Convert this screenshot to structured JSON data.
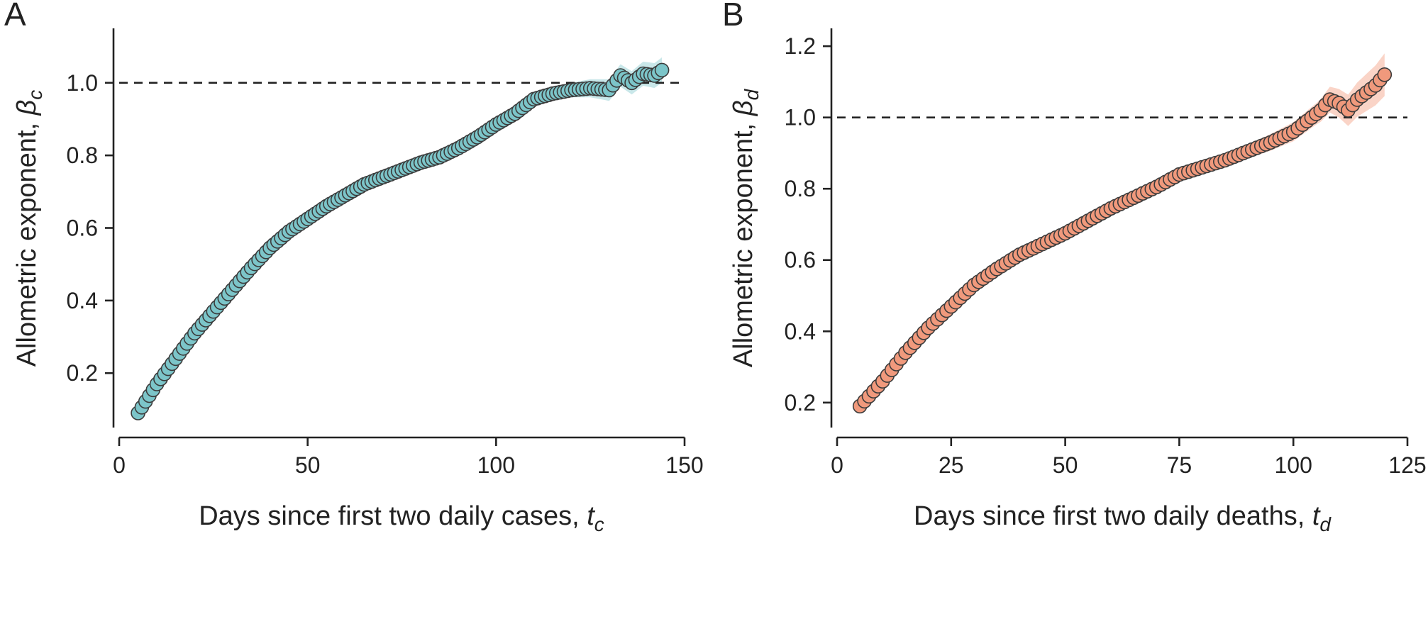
{
  "colors": {
    "series_a_fill": "#7cc5c9",
    "series_a_band": "#bfe3e5",
    "series_b_fill": "#f0997c",
    "series_b_band": "#f9cdbd",
    "marker_edge": "#3c3c3c",
    "axis": "#222222"
  },
  "chart_data": [
    {
      "panel_letter": "A",
      "type": "scatter",
      "xlabel_main": "Days since first two daily cases, ",
      "xlabel_var": "t",
      "xlabel_sub": "c",
      "ylabel_main": "Allometric exponent, ",
      "ylabel_var": "β",
      "ylabel_sub": "c",
      "xlim": [
        0,
        150
      ],
      "ylim": [
        0.05,
        1.15
      ],
      "xticks": [
        0,
        50,
        100,
        150
      ],
      "yticks": [
        0.2,
        0.4,
        0.6,
        0.8,
        1.0
      ],
      "xtick_labels": [
        "0",
        "50",
        "100",
        "150"
      ],
      "ytick_labels": [
        "0.2",
        "0.4",
        "0.6",
        "0.8",
        "1.0"
      ],
      "reference_line_y": 1.0,
      "grid": false,
      "legend": false,
      "points": {
        "x_start": 5,
        "x_end": 144,
        "anchors": [
          [
            5,
            0.09
          ],
          [
            10,
            0.17
          ],
          [
            15,
            0.24
          ],
          [
            20,
            0.31
          ],
          [
            25,
            0.37
          ],
          [
            30,
            0.43
          ],
          [
            35,
            0.49
          ],
          [
            40,
            0.545
          ],
          [
            45,
            0.59
          ],
          [
            50,
            0.625
          ],
          [
            55,
            0.66
          ],
          [
            60,
            0.69
          ],
          [
            65,
            0.72
          ],
          [
            70,
            0.74
          ],
          [
            75,
            0.76
          ],
          [
            80,
            0.78
          ],
          [
            85,
            0.795
          ],
          [
            90,
            0.82
          ],
          [
            95,
            0.85
          ],
          [
            100,
            0.885
          ],
          [
            105,
            0.915
          ],
          [
            110,
            0.955
          ],
          [
            115,
            0.97
          ],
          [
            120,
            0.98
          ],
          [
            125,
            0.985
          ],
          [
            130,
            0.98
          ],
          [
            133,
            1.02
          ],
          [
            136,
            1.0
          ],
          [
            139,
            1.025
          ],
          [
            142,
            1.02
          ],
          [
            144,
            1.035
          ]
        ]
      },
      "band_half_width": {
        "anchors": [
          [
            5,
            0.006
          ],
          [
            100,
            0.006
          ],
          [
            110,
            0.012
          ],
          [
            120,
            0.02
          ],
          [
            130,
            0.03
          ],
          [
            144,
            0.035
          ]
        ]
      }
    },
    {
      "panel_letter": "B",
      "type": "scatter",
      "xlabel_main": "Days since first two daily deaths, ",
      "xlabel_var": "t",
      "xlabel_sub": "d",
      "ylabel_main": "Allometric exponent, ",
      "ylabel_var": "β",
      "ylabel_sub": "d",
      "xlim": [
        0,
        125
      ],
      "ylim": [
        0.13,
        1.25
      ],
      "xticks": [
        0,
        25,
        50,
        75,
        100,
        125
      ],
      "yticks": [
        0.2,
        0.4,
        0.6,
        0.8,
        1.0,
        1.2
      ],
      "xtick_labels": [
        "0",
        "25",
        "50",
        "75",
        "100",
        "125"
      ],
      "ytick_labels": [
        "0.2",
        "0.4",
        "0.6",
        "0.8",
        "1.0",
        "1.2"
      ],
      "reference_line_y": 1.0,
      "grid": false,
      "legend": false,
      "points": {
        "x_start": 5,
        "x_end": 120,
        "anchors": [
          [
            5,
            0.19
          ],
          [
            10,
            0.26
          ],
          [
            15,
            0.34
          ],
          [
            20,
            0.41
          ],
          [
            25,
            0.47
          ],
          [
            30,
            0.53
          ],
          [
            35,
            0.575
          ],
          [
            40,
            0.615
          ],
          [
            45,
            0.645
          ],
          [
            50,
            0.675
          ],
          [
            55,
            0.71
          ],
          [
            60,
            0.745
          ],
          [
            65,
            0.775
          ],
          [
            70,
            0.805
          ],
          [
            75,
            0.84
          ],
          [
            80,
            0.86
          ],
          [
            85,
            0.88
          ],
          [
            90,
            0.905
          ],
          [
            95,
            0.93
          ],
          [
            100,
            0.96
          ],
          [
            103,
            0.99
          ],
          [
            106,
            1.02
          ],
          [
            108,
            1.05
          ],
          [
            110,
            1.04
          ],
          [
            112,
            1.02
          ],
          [
            114,
            1.05
          ],
          [
            116,
            1.07
          ],
          [
            118,
            1.09
          ],
          [
            120,
            1.12
          ]
        ]
      },
      "band_half_width": {
        "anchors": [
          [
            5,
            0.006
          ],
          [
            70,
            0.012
          ],
          [
            90,
            0.02
          ],
          [
            105,
            0.03
          ],
          [
            120,
            0.06
          ]
        ]
      }
    }
  ]
}
